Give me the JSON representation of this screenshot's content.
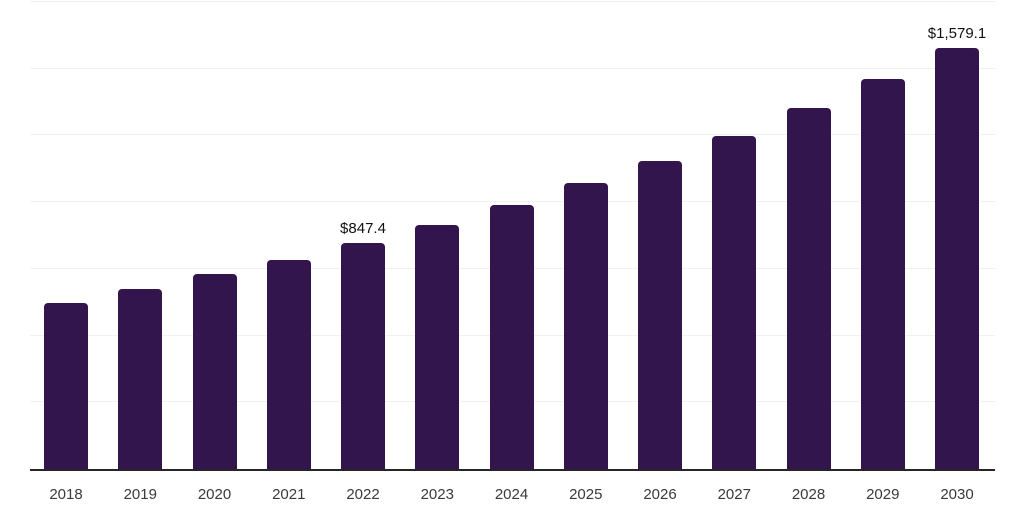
{
  "chart_data": {
    "type": "bar",
    "title": "",
    "xlabel": "",
    "ylabel": "",
    "categories": [
      "2018",
      "2019",
      "2020",
      "2021",
      "2022",
      "2023",
      "2024",
      "2025",
      "2026",
      "2027",
      "2028",
      "2029",
      "2030"
    ],
    "values": [
      622.0,
      675.0,
      730.0,
      785.0,
      847.4,
      913.0,
      988.0,
      1071.0,
      1156.0,
      1249.0,
      1351.0,
      1463.0,
      1579.1
    ],
    "data_labels": {
      "2022": "$847.4",
      "2030": "$1,579.1"
    },
    "ylim": [
      0,
      1750
    ],
    "gridline_step": 250,
    "grid": true,
    "legend": "none",
    "bar_color": "#33154d",
    "gridline_color": "#f1f1f1",
    "axis_line_color": "#262626",
    "data_label_color": "#111111",
    "tick_label_color": "#3a3a3a",
    "background_color": "#ffffff"
  }
}
